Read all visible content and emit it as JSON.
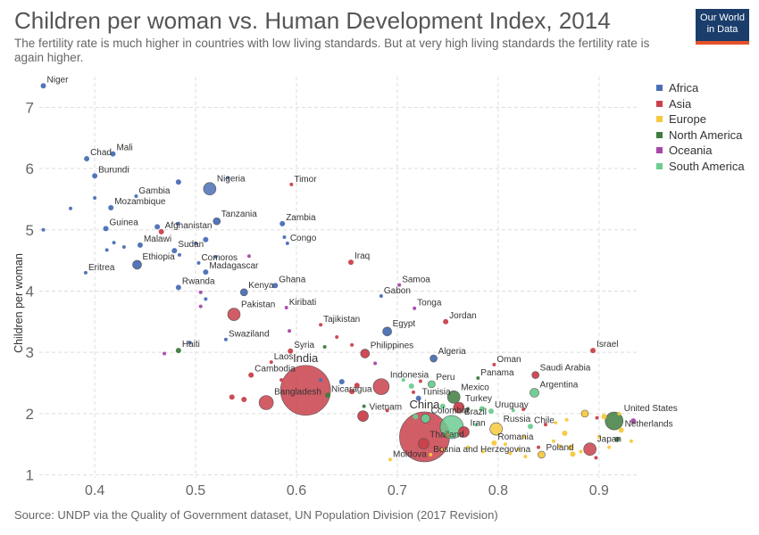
{
  "title": "Children per woman vs. Human Development Index, 2014",
  "subtitle": "The fertility rate is much higher in countries with low living standards. But at very high living standards the fertility rate is again higher.",
  "logo": {
    "line1": "Our World",
    "line2": "in Data"
  },
  "source": "Source: UNDP via the Quality of Government dataset, UN Population Division (2017 Revision)",
  "colors": {
    "Africa": "#4a6fb5",
    "Asia": "#c9414b",
    "Europe": "#f5c93e",
    "North America": "#3f7c3f",
    "Oceania": "#a647a8",
    "South America": "#6ccc92"
  },
  "legend": [
    "Africa",
    "Asia",
    "Europe",
    "North America",
    "Oceania",
    "South America"
  ],
  "chart_data": {
    "type": "scatter",
    "title": "Children per woman vs. Human Development Index, 2014",
    "xlabel": "",
    "ylabel": "Children per woman",
    "xlim": [
      0.345,
      0.94
    ],
    "ylim": [
      0.95,
      7.5
    ],
    "xticks": [
      "0.4",
      "0.5",
      "0.6",
      "0.7",
      "0.8",
      "0.9"
    ],
    "xtick_values": [
      0.4,
      0.5,
      0.6,
      0.7,
      0.8,
      0.9
    ],
    "yticks": [
      "1",
      "2",
      "3",
      "4",
      "5",
      "6",
      "7"
    ],
    "ytick_values": [
      1,
      2,
      3,
      4,
      5,
      6,
      7
    ],
    "grid": true,
    "legend_position": "top-right",
    "points": [
      {
        "name": "Niger",
        "x": 0.349,
        "y": 7.35,
        "region": "Africa",
        "s": 3
      },
      {
        "name": "Chad",
        "x": 0.392,
        "y": 6.16,
        "region": "Africa",
        "s": 3
      },
      {
        "name": "Mali",
        "x": 0.418,
        "y": 6.24,
        "region": "Africa",
        "s": 3
      },
      {
        "name": "Burundi",
        "x": 0.4,
        "y": 5.88,
        "region": "Africa",
        "s": 3
      },
      {
        "name": "Nigeria",
        "x": 0.514,
        "y": 5.67,
        "region": "Africa",
        "s": 7
      },
      {
        "name": "Timor",
        "x": 0.595,
        "y": 5.74,
        "region": "Asia",
        "s": 2
      },
      {
        "name": "Gambia",
        "x": 0.441,
        "y": 5.55,
        "region": "Africa",
        "s": 2
      },
      {
        "name": "Mozambique",
        "x": 0.416,
        "y": 5.36,
        "region": "Africa",
        "s": 3
      },
      {
        "name": "Tanzania",
        "x": 0.521,
        "y": 5.14,
        "region": "Africa",
        "s": 4
      },
      {
        "name": "Zambia",
        "x": 0.586,
        "y": 5.1,
        "region": "Africa",
        "s": 3
      },
      {
        "name": "Guinea",
        "x": 0.411,
        "y": 5.02,
        "region": "Africa",
        "s": 3
      },
      {
        "name": "Afghanistan",
        "x": 0.466,
        "y": 4.97,
        "region": "Asia",
        "s": 3
      },
      {
        "name": "Congo",
        "x": 0.591,
        "y": 4.78,
        "region": "Africa",
        "s": 2
      },
      {
        "name": "Malawi",
        "x": 0.445,
        "y": 4.75,
        "region": "Africa",
        "s": 3
      },
      {
        "name": "Sudan",
        "x": 0.479,
        "y": 4.66,
        "region": "Africa",
        "s": 3
      },
      {
        "name": "Ethiopia",
        "x": 0.442,
        "y": 4.43,
        "region": "Africa",
        "s": 5
      },
      {
        "name": "Comoros",
        "x": 0.503,
        "y": 4.46,
        "region": "Africa",
        "s": 2
      },
      {
        "name": "Iraq",
        "x": 0.654,
        "y": 4.47,
        "region": "Asia",
        "s": 3
      },
      {
        "name": "Eritrea",
        "x": 0.391,
        "y": 4.3,
        "region": "Africa",
        "s": 2
      },
      {
        "name": "Madagascar",
        "x": 0.51,
        "y": 4.31,
        "region": "Africa",
        "s": 3
      },
      {
        "name": "Samoa",
        "x": 0.702,
        "y": 4.1,
        "region": "Oceania",
        "s": 2
      },
      {
        "name": "Ghana",
        "x": 0.579,
        "y": 4.09,
        "region": "Africa",
        "s": 3
      },
      {
        "name": "Rwanda",
        "x": 0.483,
        "y": 4.06,
        "region": "Africa",
        "s": 3
      },
      {
        "name": "Kenya",
        "x": 0.548,
        "y": 3.98,
        "region": "Africa",
        "s": 4
      },
      {
        "name": "Gabon",
        "x": 0.684,
        "y": 3.92,
        "region": "Africa",
        "s": 2
      },
      {
        "name": "Kiribati",
        "x": 0.59,
        "y": 3.73,
        "region": "Oceania",
        "s": 2
      },
      {
        "name": "Tonga",
        "x": 0.717,
        "y": 3.72,
        "region": "Oceania",
        "s": 2
      },
      {
        "name": "Pakistan",
        "x": 0.538,
        "y": 3.62,
        "region": "Asia",
        "s": 7
      },
      {
        "name": "Jordan",
        "x": 0.748,
        "y": 3.5,
        "region": "Asia",
        "s": 3
      },
      {
        "name": "Tajikistan",
        "x": 0.624,
        "y": 3.45,
        "region": "Asia",
        "s": 2
      },
      {
        "name": "Egypt",
        "x": 0.69,
        "y": 3.34,
        "region": "Africa",
        "s": 5
      },
      {
        "name": "Swaziland",
        "x": 0.53,
        "y": 3.21,
        "region": "Africa",
        "s": 2
      },
      {
        "name": "Haiti",
        "x": 0.483,
        "y": 3.03,
        "region": "North America",
        "s": 3
      },
      {
        "name": "Syria",
        "x": 0.594,
        "y": 3.02,
        "region": "Asia",
        "s": 3
      },
      {
        "name": "Philippines",
        "x": 0.668,
        "y": 2.98,
        "region": "Asia",
        "s": 5
      },
      {
        "name": "Israel",
        "x": 0.894,
        "y": 3.03,
        "region": "Asia",
        "s": 3
      },
      {
        "name": "Algeria",
        "x": 0.736,
        "y": 2.9,
        "region": "Africa",
        "s": 4
      },
      {
        "name": "Laos",
        "x": 0.575,
        "y": 2.84,
        "region": "Asia",
        "s": 2
      },
      {
        "name": "Oman",
        "x": 0.796,
        "y": 2.8,
        "region": "Asia",
        "s": 2
      },
      {
        "name": "Cambodia",
        "x": 0.555,
        "y": 2.63,
        "region": "Asia",
        "s": 3
      },
      {
        "name": "Saudi Arabia",
        "x": 0.837,
        "y": 2.63,
        "region": "Asia",
        "s": 4
      },
      {
        "name": "Panama",
        "x": 0.78,
        "y": 2.58,
        "region": "North America",
        "s": 2
      },
      {
        "name": "Indonesia",
        "x": 0.684,
        "y": 2.44,
        "region": "Asia",
        "s": 9
      },
      {
        "name": "Peru",
        "x": 0.734,
        "y": 2.48,
        "region": "South America",
        "s": 4
      },
      {
        "name": "India",
        "x": 0.609,
        "y": 2.38,
        "region": "Asia",
        "s": 28
      },
      {
        "name": "Argentina",
        "x": 0.836,
        "y": 2.34,
        "region": "South America",
        "s": 5
      },
      {
        "name": "Nicaragua",
        "x": 0.631,
        "y": 2.3,
        "region": "North America",
        "s": 3
      },
      {
        "name": "Tunisia",
        "x": 0.721,
        "y": 2.25,
        "region": "Africa",
        "s": 3
      },
      {
        "name": "Mexico",
        "x": 0.756,
        "y": 2.27,
        "region": "North America",
        "s": 7
      },
      {
        "name": "Bangladesh",
        "x": 0.57,
        "y": 2.18,
        "region": "Asia",
        "s": 8
      },
      {
        "name": "Turkey",
        "x": 0.761,
        "y": 2.1,
        "region": "Asia",
        "s": 6
      },
      {
        "name": "Vietnam",
        "x": 0.666,
        "y": 1.96,
        "region": "Asia",
        "s": 6
      },
      {
        "name": "Uruguay",
        "x": 0.793,
        "y": 2.04,
        "region": "South America",
        "s": 3
      },
      {
        "name": "United States",
        "x": 0.915,
        "y": 1.88,
        "region": "North America",
        "s": 10
      },
      {
        "name": "China",
        "x": 0.727,
        "y": 1.62,
        "region": "Asia",
        "s": 28
      },
      {
        "name": "Iran",
        "x": 0.766,
        "y": 1.7,
        "region": "Asia",
        "s": 6
      },
      {
        "name": "Russia",
        "x": 0.798,
        "y": 1.75,
        "region": "Europe",
        "s": 7
      },
      {
        "name": "Chile",
        "x": 0.832,
        "y": 1.79,
        "region": "South America",
        "s": 3
      },
      {
        "name": "Netherlands",
        "x": 0.922,
        "y": 1.73,
        "region": "Europe",
        "s": 3
      },
      {
        "name": "Brazil",
        "x": 0.754,
        "y": 1.78,
        "region": "South America",
        "s": 13
      },
      {
        "name": "Thailand",
        "x": 0.726,
        "y": 1.51,
        "region": "Asia",
        "s": 6
      },
      {
        "name": "Romania",
        "x": 0.796,
        "y": 1.52,
        "region": "Europe",
        "s": 3
      },
      {
        "name": "Japan",
        "x": 0.891,
        "y": 1.42,
        "region": "Asia",
        "s": 7
      },
      {
        "name": "Bosnia and Herzegovina",
        "x": 0.733,
        "y": 1.33,
        "region": "Europe",
        "s": 2
      },
      {
        "name": "Poland",
        "x": 0.843,
        "y": 1.33,
        "region": "Europe",
        "s": 4
      },
      {
        "name": "Moldova",
        "x": 0.693,
        "y": 1.25,
        "region": "Europe",
        "s": 2
      },
      {
        "name": "Colombia",
        "x": 0.728,
        "y": 1.92,
        "region": "South America",
        "s": 5
      },
      {
        "name": "",
        "x": 0.376,
        "y": 5.35,
        "region": "Africa",
        "s": 2
      },
      {
        "name": "",
        "x": 0.4,
        "y": 5.52,
        "region": "Africa",
        "s": 2
      },
      {
        "name": "",
        "x": 0.483,
        "y": 5.78,
        "region": "Africa",
        "s": 3
      },
      {
        "name": "",
        "x": 0.532,
        "y": 5.85,
        "region": "Africa",
        "s": 2
      },
      {
        "name": "",
        "x": 0.349,
        "y": 5.0,
        "region": "Africa",
        "s": 2
      },
      {
        "name": "",
        "x": 0.419,
        "y": 4.79,
        "region": "Africa",
        "s": 2
      },
      {
        "name": "",
        "x": 0.412,
        "y": 4.67,
        "region": "Africa",
        "s": 2
      },
      {
        "name": "",
        "x": 0.429,
        "y": 4.72,
        "region": "Africa",
        "s": 2
      },
      {
        "name": "",
        "x": 0.462,
        "y": 5.05,
        "region": "Africa",
        "s": 3
      },
      {
        "name": "",
        "x": 0.482,
        "y": 5.1,
        "region": "Africa",
        "s": 2
      },
      {
        "name": "",
        "x": 0.5,
        "y": 4.78,
        "region": "Africa",
        "s": 2
      },
      {
        "name": "",
        "x": 0.51,
        "y": 4.84,
        "region": "Africa",
        "s": 3
      },
      {
        "name": "",
        "x": 0.484,
        "y": 4.59,
        "region": "Africa",
        "s": 2
      },
      {
        "name": "",
        "x": 0.52,
        "y": 4.56,
        "region": "Africa",
        "s": 2
      },
      {
        "name": "",
        "x": 0.553,
        "y": 4.57,
        "region": "Oceania",
        "s": 2
      },
      {
        "name": "",
        "x": 0.588,
        "y": 4.88,
        "region": "Africa",
        "s": 2
      },
      {
        "name": "",
        "x": 0.505,
        "y": 3.98,
        "region": "Oceania",
        "s": 2
      },
      {
        "name": "",
        "x": 0.51,
        "y": 3.87,
        "region": "Africa",
        "s": 2
      },
      {
        "name": "",
        "x": 0.505,
        "y": 3.75,
        "region": "Oceania",
        "s": 2
      },
      {
        "name": "",
        "x": 0.469,
        "y": 2.98,
        "region": "Oceania",
        "s": 2
      },
      {
        "name": "",
        "x": 0.494,
        "y": 3.16,
        "region": "Africa",
        "s": 2
      },
      {
        "name": "",
        "x": 0.593,
        "y": 3.35,
        "region": "Oceania",
        "s": 2
      },
      {
        "name": "",
        "x": 0.64,
        "y": 3.25,
        "region": "Asia",
        "s": 2
      },
      {
        "name": "",
        "x": 0.628,
        "y": 3.09,
        "region": "North America",
        "s": 2
      },
      {
        "name": "",
        "x": 0.655,
        "y": 3.12,
        "region": "Asia",
        "s": 2
      },
      {
        "name": "",
        "x": 0.678,
        "y": 2.82,
        "region": "Oceania",
        "s": 2
      },
      {
        "name": "",
        "x": 0.585,
        "y": 2.55,
        "region": "Asia",
        "s": 2
      },
      {
        "name": "",
        "x": 0.624,
        "y": 2.55,
        "region": "Africa",
        "s": 2
      },
      {
        "name": "",
        "x": 0.645,
        "y": 2.52,
        "region": "Africa",
        "s": 3
      },
      {
        "name": "",
        "x": 0.66,
        "y": 2.46,
        "region": "Asia",
        "s": 3
      },
      {
        "name": "",
        "x": 0.706,
        "y": 2.55,
        "region": "South America",
        "s": 2
      },
      {
        "name": "",
        "x": 0.723,
        "y": 2.53,
        "region": "Asia",
        "s": 2
      },
      {
        "name": "",
        "x": 0.714,
        "y": 2.45,
        "region": "South America",
        "s": 3
      },
      {
        "name": "",
        "x": 0.716,
        "y": 2.35,
        "region": "Asia",
        "s": 2
      },
      {
        "name": "",
        "x": 0.536,
        "y": 2.27,
        "region": "Asia",
        "s": 3
      },
      {
        "name": "",
        "x": 0.548,
        "y": 2.23,
        "region": "Asia",
        "s": 3
      },
      {
        "name": "",
        "x": 0.655,
        "y": 2.36,
        "region": "Asia",
        "s": 3
      },
      {
        "name": "",
        "x": 0.667,
        "y": 2.12,
        "region": "North America",
        "s": 2
      },
      {
        "name": "",
        "x": 0.69,
        "y": 2.05,
        "region": "Asia",
        "s": 2
      },
      {
        "name": "",
        "x": 0.745,
        "y": 2.12,
        "region": "South America",
        "s": 3
      },
      {
        "name": "",
        "x": 0.77,
        "y": 2.08,
        "region": "North America",
        "s": 2
      },
      {
        "name": "",
        "x": 0.718,
        "y": 1.95,
        "region": "South America",
        "s": 3
      },
      {
        "name": "",
        "x": 0.778,
        "y": 1.82,
        "region": "South America",
        "s": 2
      },
      {
        "name": "",
        "x": 0.784,
        "y": 2.08,
        "region": "South America",
        "s": 3
      },
      {
        "name": "",
        "x": 0.815,
        "y": 2.05,
        "region": "South America",
        "s": 2
      },
      {
        "name": "",
        "x": 0.825,
        "y": 2.07,
        "region": "Asia",
        "s": 2
      },
      {
        "name": "",
        "x": 0.847,
        "y": 1.82,
        "region": "Asia",
        "s": 2
      },
      {
        "name": "",
        "x": 0.857,
        "y": 1.85,
        "region": "Europe",
        "s": 2
      },
      {
        "name": "",
        "x": 0.868,
        "y": 1.9,
        "region": "Europe",
        "s": 2
      },
      {
        "name": "",
        "x": 0.886,
        "y": 2.0,
        "region": "Europe",
        "s": 4
      },
      {
        "name": "",
        "x": 0.898,
        "y": 1.93,
        "region": "Asia",
        "s": 2
      },
      {
        "name": "",
        "x": 0.905,
        "y": 1.95,
        "region": "Europe",
        "s": 3
      },
      {
        "name": "",
        "x": 0.92,
        "y": 2.0,
        "region": "Europe",
        "s": 2
      },
      {
        "name": "",
        "x": 0.934,
        "y": 1.88,
        "region": "Oceania",
        "s": 3
      },
      {
        "name": "",
        "x": 0.932,
        "y": 1.55,
        "region": "Europe",
        "s": 2
      },
      {
        "name": "",
        "x": 0.918,
        "y": 1.58,
        "region": "North America",
        "s": 3
      },
      {
        "name": "",
        "x": 0.9,
        "y": 1.62,
        "region": "Europe",
        "s": 2
      },
      {
        "name": "",
        "x": 0.866,
        "y": 1.68,
        "region": "Europe",
        "s": 3
      },
      {
        "name": "",
        "x": 0.855,
        "y": 1.55,
        "region": "Europe",
        "s": 2
      },
      {
        "name": "",
        "x": 0.872,
        "y": 1.45,
        "region": "Europe",
        "s": 3
      },
      {
        "name": "",
        "x": 0.882,
        "y": 1.38,
        "region": "Europe",
        "s": 2
      },
      {
        "name": "",
        "x": 0.874,
        "y": 1.34,
        "region": "Europe",
        "s": 3
      },
      {
        "name": "",
        "x": 0.861,
        "y": 1.47,
        "region": "Europe",
        "s": 2
      },
      {
        "name": "",
        "x": 0.82,
        "y": 1.42,
        "region": "Europe",
        "s": 2
      },
      {
        "name": "",
        "x": 0.812,
        "y": 1.35,
        "region": "Europe",
        "s": 2
      },
      {
        "name": "",
        "x": 0.827,
        "y": 1.3,
        "region": "Europe",
        "s": 2
      },
      {
        "name": "",
        "x": 0.826,
        "y": 1.62,
        "region": "Europe",
        "s": 2
      },
      {
        "name": "",
        "x": 0.91,
        "y": 1.45,
        "region": "Europe",
        "s": 2
      },
      {
        "name": "",
        "x": 0.897,
        "y": 1.28,
        "region": "Asia",
        "s": 2
      },
      {
        "name": "",
        "x": 0.84,
        "y": 1.45,
        "region": "Asia",
        "s": 2
      },
      {
        "name": "",
        "x": 0.75,
        "y": 1.65,
        "region": "Europe",
        "s": 2
      },
      {
        "name": "",
        "x": 0.77,
        "y": 1.45,
        "region": "Europe",
        "s": 2
      },
      {
        "name": "",
        "x": 0.785,
        "y": 1.38,
        "region": "Europe",
        "s": 2
      },
      {
        "name": "",
        "x": 0.807,
        "y": 1.5,
        "region": "Europe",
        "s": 2
      },
      {
        "name": "",
        "x": 0.745,
        "y": 1.42,
        "region": "Europe",
        "s": 2
      }
    ]
  }
}
